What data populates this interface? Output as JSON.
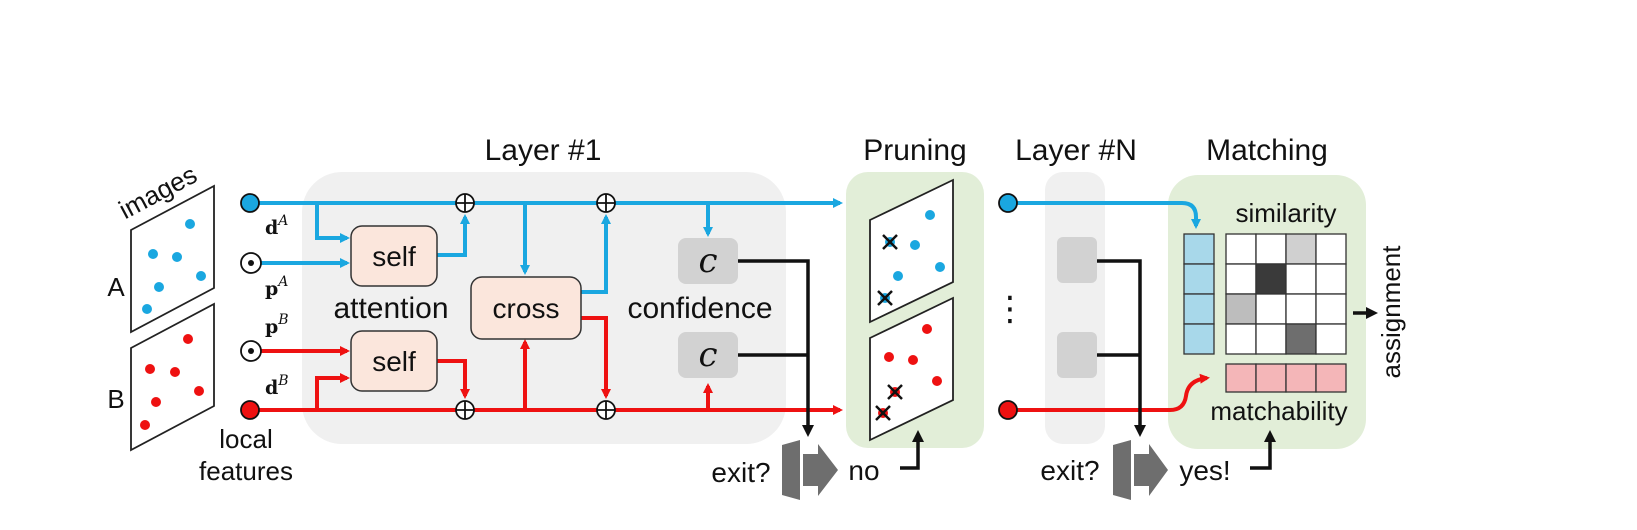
{
  "titles": {
    "layer1": "Layer #1",
    "pruning": "Pruning",
    "layerN": "Layer #N",
    "matching": "Matching"
  },
  "inputs": {
    "images_label": "images",
    "image_a": "A",
    "image_b": "B",
    "local_features_line1": "local",
    "local_features_line2": "features",
    "d_a_sym": "d",
    "d_a_sup": "A",
    "p_a_sym": "p",
    "p_a_sup": "A",
    "p_b_sym": "p",
    "p_b_sup": "B",
    "d_b_sym": "d",
    "d_b_sup": "B"
  },
  "blocks": {
    "self_top": "self",
    "self_bottom": "self",
    "attention": "attention",
    "cross": "cross",
    "confidence_symbol": "c",
    "confidence": "confidence"
  },
  "exits": {
    "exit1": "exit?",
    "no": "no",
    "exit2": "exit?",
    "yes": "yes!",
    "dots": "⋮"
  },
  "matching": {
    "similarity": "similarity",
    "matchability": "matchability",
    "assignment": "assignment"
  },
  "colors": {
    "blue": "#1aa7e0",
    "red": "#ee1111",
    "layer_panel": "#f0f0f0",
    "green_panel": "#e2eed8",
    "orange_block": "#fbe6dc",
    "conf_block": "#d2d2d2"
  }
}
